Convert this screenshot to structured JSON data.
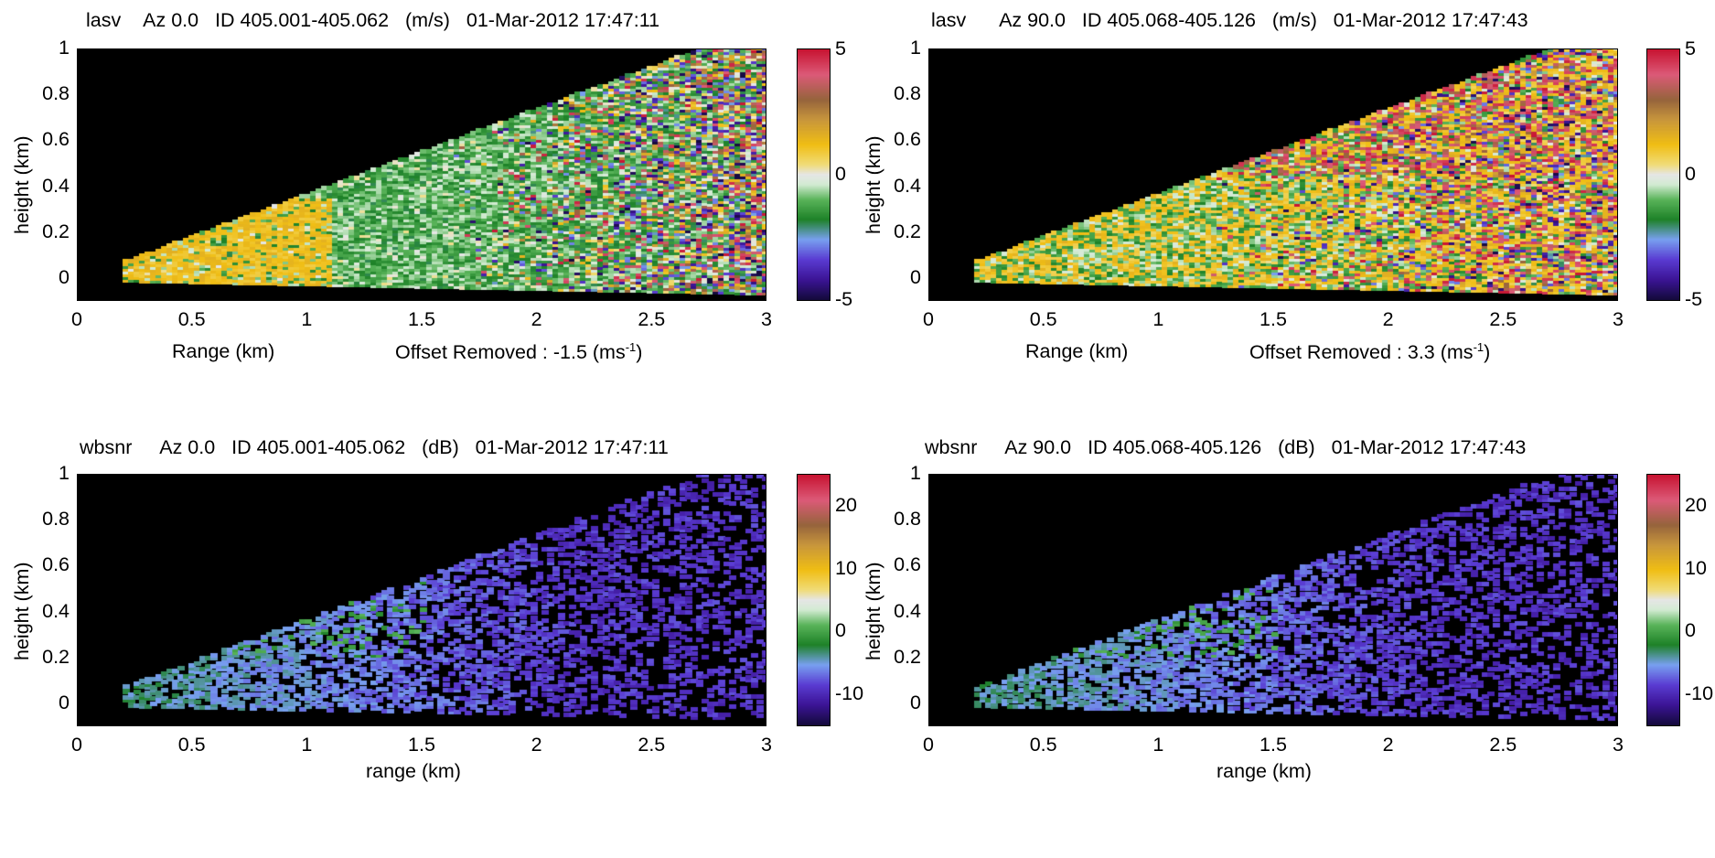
{
  "chart_data": [
    {
      "type": "heatmap",
      "title_parts": [
        "lasv",
        "Az 0.0",
        "ID 405.001-405.062",
        "(m/s)",
        "01-Mar-2012 17:47:11"
      ],
      "xlabel": "Range (km)",
      "ylabel": "height (km)",
      "note": "Offset Removed : -1.5 (ms",
      "note_sup": "-1",
      "note_end": ")",
      "xlim": [
        0,
        3
      ],
      "ylim": [
        -0.1,
        1
      ],
      "x_ticks": [
        "0",
        "0.5",
        "1",
        "1.5",
        "2",
        "2.5",
        "3"
      ],
      "y_ticks": [
        "0",
        "0.2",
        "0.4",
        "0.6",
        "0.8",
        "1"
      ],
      "colorbar": {
        "range": [
          -5,
          5
        ],
        "ticks": [
          "5",
          "0",
          "-5"
        ],
        "tick_values": [
          5,
          0,
          -5
        ]
      },
      "palette": "velocity",
      "field": "lasv_az0"
    },
    {
      "type": "heatmap",
      "title_parts": [
        "lasv",
        "Az 90.0",
        "ID 405.068-405.126",
        "(m/s)",
        "01-Mar-2012 17:47:43"
      ],
      "xlabel": "Range (km)",
      "ylabel": "height (km)",
      "note": "Offset Removed : 3.3 (ms",
      "note_sup": "-1",
      "note_end": ")",
      "xlim": [
        0,
        3
      ],
      "ylim": [
        -0.1,
        1
      ],
      "x_ticks": [
        "0",
        "0.5",
        "1",
        "1.5",
        "2",
        "2.5",
        "3"
      ],
      "y_ticks": [
        "0",
        "0.2",
        "0.4",
        "0.6",
        "0.8",
        "1"
      ],
      "colorbar": {
        "range": [
          -5,
          5
        ],
        "ticks": [
          "5",
          "0",
          "-5"
        ],
        "tick_values": [
          5,
          0,
          -5
        ]
      },
      "palette": "velocity",
      "field": "lasv_az90"
    },
    {
      "type": "heatmap",
      "title_parts": [
        "wbsnr",
        "Az 0.0",
        "ID 405.001-405.062",
        "(dB)",
        "01-Mar-2012 17:47:11"
      ],
      "xlabel": "range (km)",
      "ylabel": "height (km)",
      "note": "",
      "note_sup": "",
      "note_end": "",
      "xlim": [
        0,
        3
      ],
      "ylim": [
        -0.1,
        1
      ],
      "x_ticks": [
        "0",
        "0.5",
        "1",
        "1.5",
        "2",
        "2.5",
        "3"
      ],
      "y_ticks": [
        "0",
        "0.2",
        "0.4",
        "0.6",
        "0.8",
        "1"
      ],
      "colorbar": {
        "range": [
          -15,
          25
        ],
        "ticks": [
          "20",
          "10",
          "0",
          "-10"
        ],
        "tick_values": [
          20,
          10,
          0,
          -10
        ]
      },
      "palette": "snr",
      "field": "snr_az0"
    },
    {
      "type": "heatmap",
      "title_parts": [
        "wbsnr",
        "Az 90.0",
        "ID 405.068-405.126",
        "(dB)",
        "01-Mar-2012 17:47:43"
      ],
      "xlabel": "range (km)",
      "ylabel": "height (km)",
      "note": "",
      "note_sup": "",
      "note_end": "",
      "xlim": [
        0,
        3
      ],
      "ylim": [
        -0.1,
        1
      ],
      "x_ticks": [
        "0",
        "0.5",
        "1",
        "1.5",
        "2",
        "2.5",
        "3"
      ],
      "y_ticks": [
        "0",
        "0.2",
        "0.4",
        "0.6",
        "0.8",
        "1"
      ],
      "colorbar": {
        "range": [
          -15,
          25
        ],
        "ticks": [
          "20",
          "10",
          "0",
          "-10"
        ],
        "tick_values": [
          20,
          10,
          0,
          -10
        ]
      },
      "palette": "snr",
      "field": "snr_az90"
    }
  ]
}
